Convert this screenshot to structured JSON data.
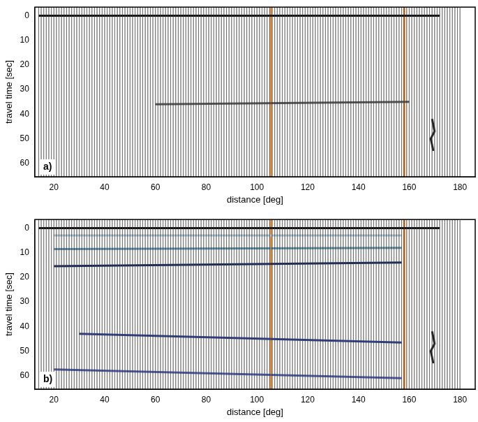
{
  "chart_data": [
    {
      "type": "line",
      "panel_label": "a)",
      "xlabel": "distance [deg]",
      "ylabel": "travel time [sec]",
      "xlim": [
        12.5,
        186
      ],
      "xticks": [
        20,
        40,
        60,
        80,
        100,
        120,
        140,
        160,
        180
      ],
      "ylim": [
        65.5,
        -3.5
      ],
      "yticks": [
        0,
        10,
        20,
        30,
        40,
        50,
        60
      ],
      "grid": false,
      "trace_distances": [
        14,
        15,
        16,
        17,
        18,
        19,
        20,
        21,
        22,
        23,
        24,
        25,
        26,
        27,
        28,
        29,
        30,
        31,
        32,
        33,
        34,
        35,
        36,
        37,
        38,
        39,
        40,
        41,
        42,
        43,
        44,
        45,
        46,
        47,
        48,
        49,
        50,
        51,
        52,
        53,
        54,
        55,
        56,
        57,
        58,
        59,
        60,
        61,
        62,
        63,
        64,
        65,
        66,
        67,
        68,
        69,
        70,
        71,
        72,
        73,
        74,
        75,
        76,
        77,
        78,
        79,
        80,
        81,
        82,
        83,
        84,
        85,
        86,
        87,
        88,
        89,
        90,
        91,
        92,
        93,
        94,
        95,
        96,
        97,
        98,
        99,
        100,
        101,
        102,
        103,
        104,
        105,
        106,
        107,
        108,
        109,
        110,
        111,
        112,
        113,
        114,
        115,
        116,
        117,
        118,
        119,
        120,
        121,
        122,
        123,
        124,
        125,
        126,
        127,
        128,
        129,
        130,
        131,
        132,
        133,
        134,
        135,
        136,
        137,
        138,
        139,
        140,
        141,
        142,
        143,
        144,
        145,
        146,
        147,
        148,
        149,
        150,
        151,
        152,
        153,
        154,
        155,
        156,
        157,
        158,
        159,
        160,
        161,
        162,
        163,
        164,
        165,
        166,
        167,
        168,
        169,
        170,
        171,
        172,
        173,
        174,
        175,
        176,
        177,
        178,
        179,
        180
      ],
      "series": [
        {
          "color": "#111111",
          "x": [
            14,
            172
          ],
          "values": [
            0,
            0
          ]
        },
        {
          "color": "#555555",
          "x": [
            60,
            160
          ],
          "values": [
            36,
            35
          ]
        },
        {
          "color": "#222222",
          "x": [
            169,
            170,
            168.5,
            169.5
          ],
          "values": [
            42,
            47,
            50,
            55
          ]
        },
        {
          "color": "#f28c28",
          "x": [
            105.5,
            105.5
          ],
          "values": [
            -3.5,
            65.5
          ]
        },
        {
          "color": "#f28c28",
          "x": [
            158,
            158
          ],
          "values": [
            -3.5,
            65.5
          ]
        }
      ]
    },
    {
      "type": "line",
      "panel_label": "b)",
      "xlabel": "distance [deg]",
      "ylabel": "travel time [sec]",
      "xlim": [
        12.5,
        186
      ],
      "xticks": [
        20,
        40,
        60,
        80,
        100,
        120,
        140,
        160,
        180
      ],
      "ylim": [
        65.5,
        -3.5
      ],
      "yticks": [
        0,
        10,
        20,
        30,
        40,
        50,
        60
      ],
      "grid": false,
      "trace_distances": [
        14,
        15,
        16,
        17,
        18,
        19,
        20,
        21,
        22,
        23,
        24,
        25,
        26,
        27,
        28,
        29,
        30,
        31,
        32,
        33,
        34,
        35,
        36,
        37,
        38,
        39,
        40,
        41,
        42,
        43,
        44,
        45,
        46,
        47,
        48,
        49,
        50,
        51,
        52,
        53,
        54,
        55,
        56,
        57,
        58,
        59,
        60,
        61,
        62,
        63,
        64,
        65,
        66,
        67,
        68,
        69,
        70,
        71,
        72,
        73,
        74,
        75,
        76,
        77,
        78,
        79,
        80,
        81,
        82,
        83,
        84,
        85,
        86,
        87,
        88,
        89,
        90,
        91,
        92,
        93,
        94,
        95,
        96,
        97,
        98,
        99,
        100,
        101,
        102,
        103,
        104,
        105,
        106,
        107,
        108,
        109,
        110,
        111,
        112,
        113,
        114,
        115,
        116,
        117,
        118,
        119,
        120,
        121,
        122,
        123,
        124,
        125,
        126,
        127,
        128,
        129,
        130,
        131,
        132,
        133,
        134,
        135,
        136,
        137,
        138,
        139,
        140,
        141,
        142,
        143,
        144,
        145,
        146,
        147,
        148,
        149,
        150,
        151,
        152,
        153,
        154,
        155,
        156,
        157,
        158,
        159,
        160,
        161,
        162,
        163,
        164,
        165,
        166,
        167,
        168,
        169,
        170,
        171,
        172,
        173,
        174,
        175,
        176,
        177,
        178,
        179,
        180
      ],
      "series": [
        {
          "color": "#111111",
          "x": [
            14,
            172
          ],
          "values": [
            0,
            0
          ]
        },
        {
          "color": "#a9c4d4",
          "x": [
            20,
            157
          ],
          "values": [
            3,
            3
          ]
        },
        {
          "color": "#5d8fa8",
          "x": [
            20,
            157
          ],
          "values": [
            8.5,
            8
          ]
        },
        {
          "color": "#1b2a5c",
          "x": [
            20,
            157
          ],
          "values": [
            15.5,
            14
          ]
        },
        {
          "color": "#2f3f8f",
          "x": [
            30,
            157
          ],
          "values": [
            43,
            46.5
          ]
        },
        {
          "color": "#4a5aa8",
          "x": [
            20,
            157
          ],
          "values": [
            57.5,
            61
          ]
        },
        {
          "color": "#222222",
          "x": [
            169,
            170,
            168.5,
            169.5
          ],
          "values": [
            42,
            47,
            50,
            55
          ]
        },
        {
          "color": "#f28c28",
          "x": [
            105.5,
            105.5
          ],
          "values": [
            -3.5,
            65.5
          ]
        },
        {
          "color": "#f28c28",
          "x": [
            158,
            158
          ],
          "values": [
            -3.5,
            65.5
          ]
        }
      ]
    }
  ]
}
